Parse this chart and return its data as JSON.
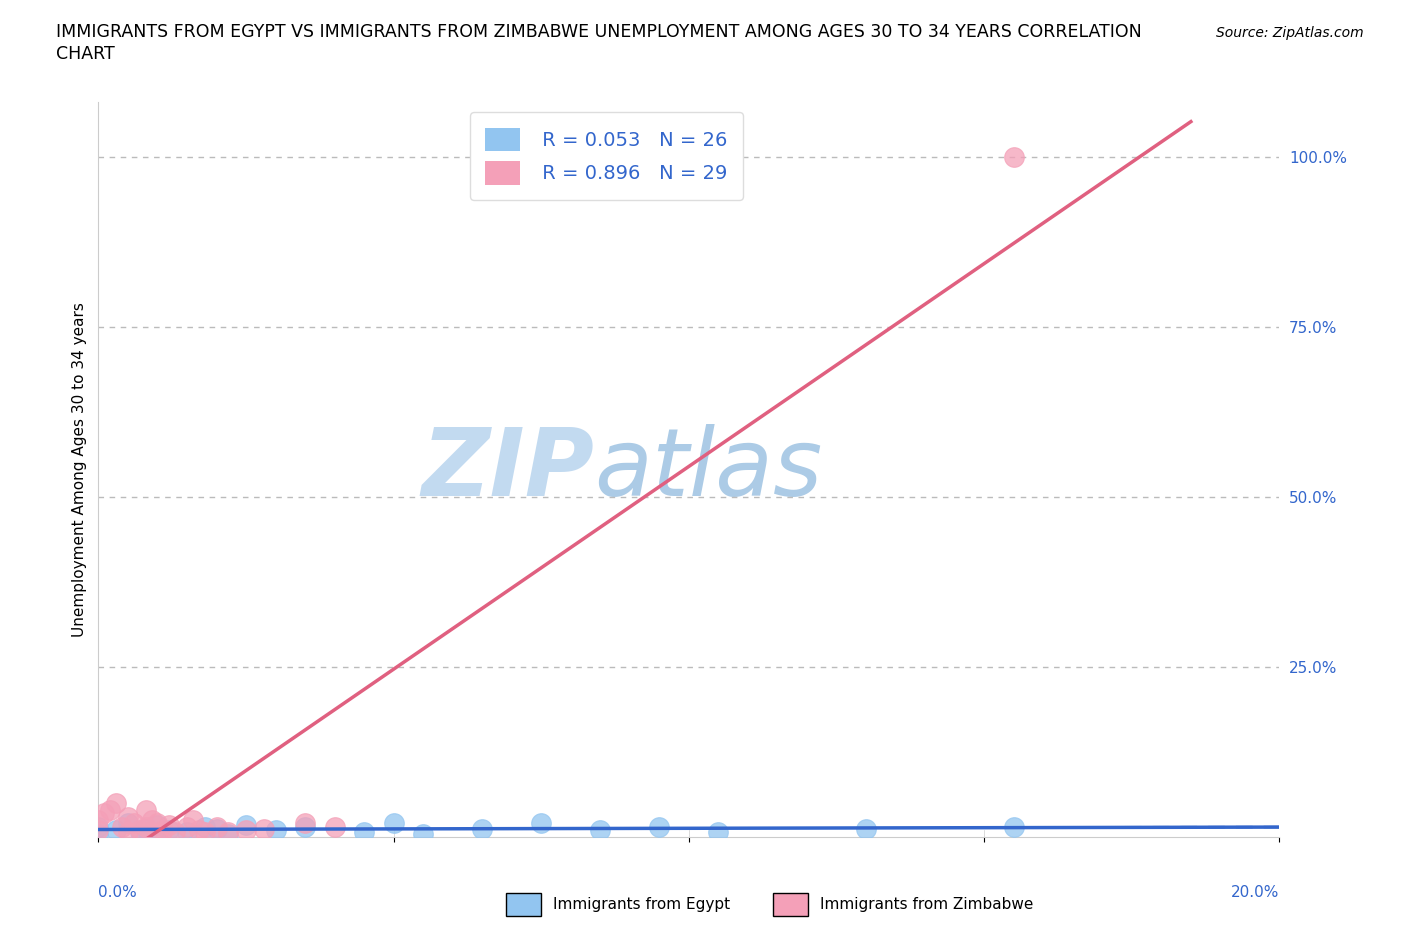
{
  "title_line1": "IMMIGRANTS FROM EGYPT VS IMMIGRANTS FROM ZIMBABWE UNEMPLOYMENT AMONG AGES 30 TO 34 YEARS CORRELATION",
  "title_line2": "CHART",
  "source": "Source: ZipAtlas.com",
  "xlabel_egypt": "Immigrants from Egypt",
  "xlabel_zimbabwe": "Immigrants from Zimbabwe",
  "ylabel": "Unemployment Among Ages 30 to 34 years",
  "egypt_R": 0.053,
  "egypt_N": 26,
  "zimbabwe_R": 0.896,
  "zimbabwe_N": 29,
  "egypt_color": "#92C5F0",
  "zimbabwe_color": "#F4A0B8",
  "egypt_line_color": "#3366CC",
  "zimbabwe_line_color": "#E06080",
  "watermark_color": "#C8DCF0",
  "watermark": "ZIPatlas",
  "xlim": [
    0.0,
    0.2
  ],
  "ylim": [
    0.0,
    1.08
  ],
  "xticks_show": [
    0.0,
    0.2
  ],
  "xtick_labels_show": [
    "0.0%",
    "20.0%"
  ],
  "yticks": [
    0.0,
    0.25,
    0.5,
    0.75,
    1.0
  ],
  "ytick_labels": [
    "",
    "25.0%",
    "50.0%",
    "75.0%",
    "100.0%"
  ],
  "grid_yticks": [
    0.25,
    0.5,
    0.75,
    1.0
  ],
  "egypt_x": [
    0.0,
    0.0,
    0.003,
    0.005,
    0.007,
    0.008,
    0.01,
    0.01,
    0.012,
    0.015,
    0.018,
    0.02,
    0.022,
    0.025,
    0.03,
    0.035,
    0.045,
    0.05,
    0.055,
    0.065,
    0.075,
    0.085,
    0.095,
    0.105,
    0.13,
    0.155
  ],
  "egypt_y": [
    0.005,
    0.015,
    0.01,
    0.02,
    0.008,
    0.012,
    0.0,
    0.018,
    0.01,
    0.008,
    0.015,
    0.012,
    0.005,
    0.018,
    0.01,
    0.015,
    0.008,
    0.02,
    0.005,
    0.012,
    0.02,
    0.01,
    0.015,
    0.008,
    0.012,
    0.015
  ],
  "zimbabwe_x": [
    0.0,
    0.0,
    0.001,
    0.002,
    0.003,
    0.004,
    0.005,
    0.005,
    0.006,
    0.007,
    0.008,
    0.008,
    0.009,
    0.01,
    0.01,
    0.011,
    0.012,
    0.013,
    0.015,
    0.016,
    0.017,
    0.018,
    0.02,
    0.022,
    0.025,
    0.028,
    0.035,
    0.04,
    0.155
  ],
  "zimbabwe_y": [
    0.01,
    0.025,
    0.035,
    0.04,
    0.05,
    0.015,
    0.008,
    0.03,
    0.02,
    0.01,
    0.04,
    0.015,
    0.025,
    0.005,
    0.02,
    0.01,
    0.018,
    0.008,
    0.015,
    0.025,
    0.01,
    0.008,
    0.015,
    0.008,
    0.01,
    0.012,
    0.02,
    0.015,
    1.0
  ]
}
